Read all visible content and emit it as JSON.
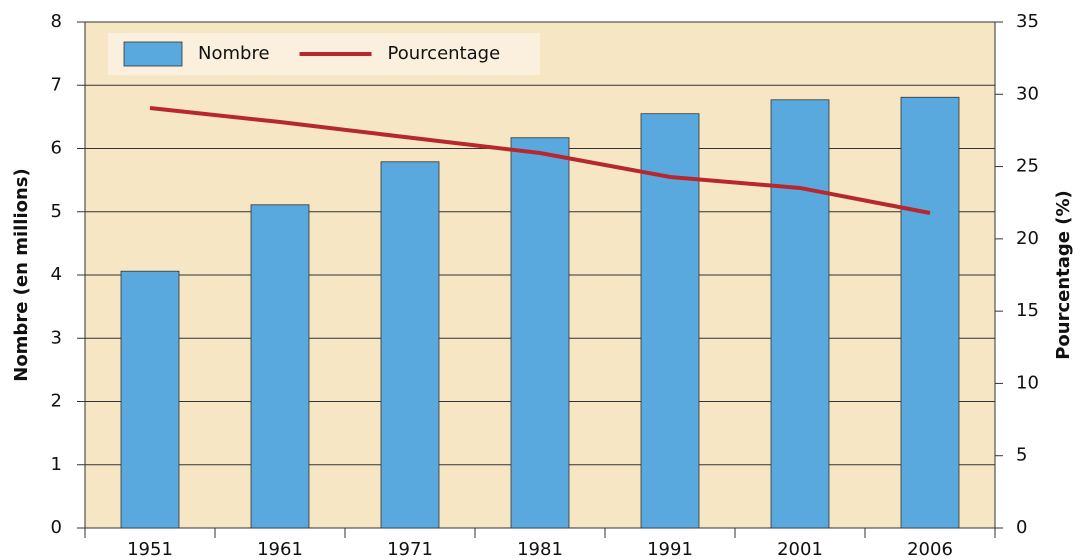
{
  "chart_data": {
    "type": "bar",
    "categories": [
      "1951",
      "1961",
      "1971",
      "1981",
      "1991",
      "2001",
      "2006"
    ],
    "series": [
      {
        "name": "Nombre",
        "type": "bar",
        "color": "#5aa9de",
        "axis": "y",
        "values": [
          4.06,
          5.11,
          5.79,
          6.17,
          6.55,
          6.77,
          6.81
        ]
      },
      {
        "name": "Pourcentage",
        "type": "line",
        "color": "#b7282e",
        "axis": "y2",
        "values": [
          29.05,
          28.08,
          27.0,
          25.94,
          24.28,
          23.52,
          21.79
        ]
      }
    ],
    "ylabel": "Nombre (en millions)",
    "y2label": "Pourcentage (%)",
    "ylim": [
      0,
      8
    ],
    "yticks": [
      0,
      1,
      2,
      3,
      4,
      5,
      6,
      7,
      8
    ],
    "y2lim": [
      0,
      35
    ],
    "y2ticks": [
      0,
      5,
      10,
      15,
      20,
      25,
      30,
      35
    ],
    "grid": true,
    "legend": "upper left"
  }
}
